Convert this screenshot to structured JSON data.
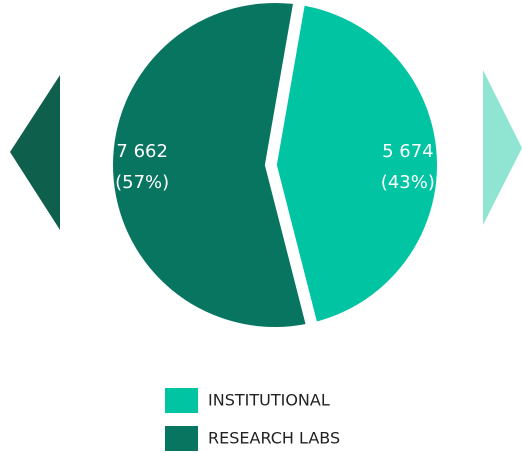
{
  "chart_data": {
    "type": "pie",
    "categories": [
      "INSTITUTIONAL",
      "RESEARCH LABS"
    ],
    "values": [
      5674,
      7662
    ],
    "value_labels": [
      "5 674",
      "7 662"
    ],
    "percentages": [
      43,
      57
    ],
    "percentage_labels": [
      "(43%)",
      "(57%)"
    ],
    "colors": [
      "#00c4a2",
      "#087560"
    ]
  }
}
